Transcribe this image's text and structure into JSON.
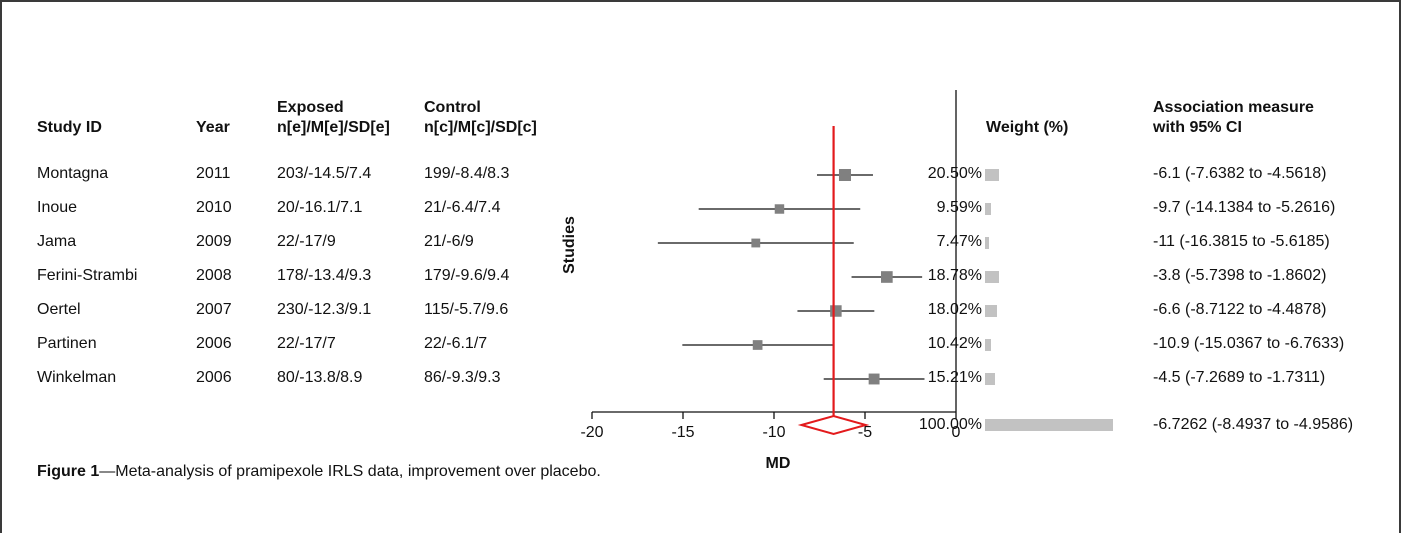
{
  "headers": {
    "study_id": "Study ID",
    "year": "Year",
    "exposed_line1": "Exposed",
    "exposed_line2": "n[e]/M[e]/SD[e]",
    "control_line1": "Control",
    "control_line2": "n[c]/M[c]/SD[c]",
    "weight": "Weight (%)",
    "assoc_line1": "Association measure",
    "assoc_line2": "with 95% CI"
  },
  "rows": [
    {
      "study": "Montagna",
      "year": "2011",
      "exposed": "203/-14.5/7.4",
      "control": "199/-8.4/8.3",
      "weight": "20.50%",
      "assoc": "-6.1 (-7.6382 to -4.5618)"
    },
    {
      "study": "Inoue",
      "year": "2010",
      "exposed": "20/-16.1/7.1",
      "control": "21/-6.4/7.4",
      "weight": "9.59%",
      "assoc": "-9.7 (-14.1384 to -5.2616)"
    },
    {
      "study": "Jama",
      "year": "2009",
      "exposed": "22/-17/9",
      "control": "21/-6/9",
      "weight": "7.47%",
      "assoc": "-11 (-16.3815 to -5.6185)"
    },
    {
      "study": "Ferini-Strambi",
      "year": "2008",
      "exposed": "178/-13.4/9.3",
      "control": "179/-9.6/9.4",
      "weight": "18.78%",
      "assoc": "-3.8 (-5.7398 to -1.8602)"
    },
    {
      "study": "Oertel",
      "year": "2007",
      "exposed": "230/-12.3/9.1",
      "control": "115/-5.7/9.6",
      "weight": "18.02%",
      "assoc": "-6.6 (-8.7122 to -4.4878)"
    },
    {
      "study": "Partinen",
      "year": "2006",
      "exposed": "22/-17/7",
      "control": "22/-6.1/7",
      "weight": "10.42%",
      "assoc": "-10.9 (-15.0367 to -6.7633)"
    },
    {
      "study": "Winkelman",
      "year": "2006",
      "exposed": "80/-13.8/8.9",
      "control": "86/-9.3/9.3",
      "weight": "15.21%",
      "assoc": "-4.5 (-7.2689 to -1.7311)"
    }
  ],
  "pooled": {
    "weight": "100.00%",
    "assoc": "-6.7262 (-8.4937 to -4.9586)"
  },
  "caption": {
    "label": "Figure 1",
    "text": "—Meta-analysis of pramipexole IRLS data, improvement over placebo."
  },
  "chart_data": {
    "type": "forest",
    "xlabel": "MD",
    "ylabel": "Studies",
    "xlim": [
      -20,
      0
    ],
    "xticks": [
      "-20",
      "-15",
      "-10",
      "-5",
      "0"
    ],
    "xtick_values": [
      -20,
      -15,
      -10,
      -5,
      0
    ],
    "studies": [
      {
        "name": "Montagna",
        "md": -6.1,
        "lo": -7.6382,
        "hi": -4.5618,
        "weight": 20.5
      },
      {
        "name": "Inoue",
        "md": -9.7,
        "lo": -14.1384,
        "hi": -5.2616,
        "weight": 9.59
      },
      {
        "name": "Jama",
        "md": -11,
        "lo": -16.3815,
        "hi": -5.6185,
        "weight": 7.47
      },
      {
        "name": "Ferini-Strambi",
        "md": -3.8,
        "lo": -5.7398,
        "hi": -1.8602,
        "weight": 18.78
      },
      {
        "name": "Oertel",
        "md": -6.6,
        "lo": -8.7122,
        "hi": -4.4878,
        "weight": 18.02
      },
      {
        "name": "Partinen",
        "md": -10.9,
        "lo": -15.0367,
        "hi": -6.7633,
        "weight": 10.42
      },
      {
        "name": "Winkelman",
        "md": -4.5,
        "lo": -7.2689,
        "hi": -1.7311,
        "weight": 15.21
      }
    ],
    "pooled": {
      "md": -6.7262,
      "lo": -8.4937,
      "hi": -4.9586
    },
    "colors": {
      "marker": "#808080",
      "pooled_line": "#e31a1c",
      "line": "#111111"
    }
  }
}
